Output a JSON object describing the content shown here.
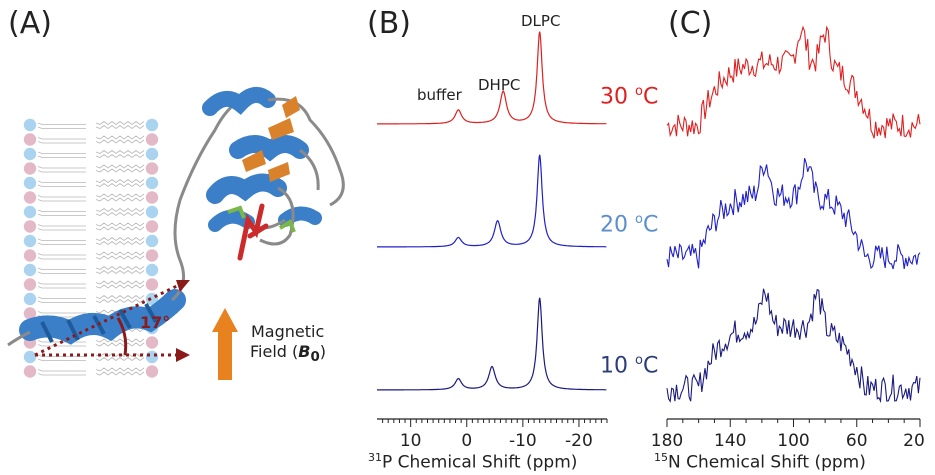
{
  "panel_a": {
    "label": "(A)",
    "angle_label": "17°",
    "field_label_line1": "Magnetic",
    "field_label_line2": "Field (",
    "field_symbol": "B",
    "field_subscript": "0",
    "field_close": ")",
    "colors": {
      "helix": "#3a7fc8",
      "strand": "#d9822b",
      "ligand": "#cc2b2b",
      "side_chain": "#7ab648",
      "loop": "#8a8a8a",
      "vector": "#8b1a1a",
      "field_arrow": "#e8821e",
      "lipid_head_blue": "#a9d3ef",
      "lipid_head_pink": "#e3b9c8"
    }
  },
  "panel_b": {
    "label": "(B)",
    "peak_labels": {
      "buffer": "buffer",
      "dhpc": "DHPC",
      "dlpc": "DLPC"
    },
    "axis_title_prefix": "31",
    "axis_title_rest": "P Chemical Shift (ppm)",
    "ticks": [
      "10",
      "0",
      "-10",
      "-20"
    ]
  },
  "panel_c": {
    "label": "(C)",
    "axis_title_prefix": "15",
    "axis_title_rest": "N Chemical Shift (ppm)",
    "ticks": [
      "180",
      "140",
      "100",
      "60",
      "20"
    ]
  },
  "temperatures": [
    {
      "value": "30",
      "unit_sup": "o",
      "unit": "C",
      "color": "#e02020"
    },
    {
      "value": "20",
      "unit_sup": "o",
      "unit": "C",
      "color": "#5b8fce"
    },
    {
      "value": "10",
      "unit_sup": "o",
      "unit": "C",
      "color": "#2c3e7a"
    }
  ],
  "chart_data": [
    {
      "type": "line",
      "title": "",
      "xlabel": "31P Chemical Shift (ppm)",
      "xlim": [
        16,
        -25
      ],
      "x_ticks": [
        10,
        0,
        -10,
        -20
      ],
      "grid": false,
      "series": [
        {
          "name": "30 oC",
          "color": "#e02020",
          "peaks": [
            {
              "x": 1.5,
              "height": 0.15
            },
            {
              "x": -6.5,
              "height": 0.35
            },
            {
              "x": -13,
              "height": 1.0
            }
          ]
        },
        {
          "name": "20 oC",
          "color": "#2020c8",
          "peaks": [
            {
              "x": 1.5,
              "height": 0.1
            },
            {
              "x": -5.5,
              "height": 0.28
            },
            {
              "x": -13,
              "height": 1.0
            }
          ]
        },
        {
          "name": "10 oC",
          "color": "#1a1a80",
          "peaks": [
            {
              "x": 1.5,
              "height": 0.12
            },
            {
              "x": -4.5,
              "height": 0.25
            },
            {
              "x": -13,
              "height": 1.0
            }
          ]
        }
      ]
    },
    {
      "type": "line",
      "title": "",
      "xlabel": "15N Chemical Shift (ppm)",
      "xlim": [
        180,
        20
      ],
      "x_ticks": [
        180,
        140,
        100,
        60,
        20
      ],
      "grid": false,
      "series": [
        {
          "name": "30 oC",
          "color": "#e02020",
          "band": [
            160,
            50
          ],
          "max_points": [
            95,
            80
          ]
        },
        {
          "name": "20 oC",
          "color": "#2020c8",
          "band": [
            160,
            55
          ],
          "max_points": [
            118,
            92
          ]
        },
        {
          "name": "10 oC",
          "color": "#1a1a80",
          "band": [
            160,
            55
          ],
          "max_points": [
            118,
            85
          ]
        }
      ]
    }
  ]
}
